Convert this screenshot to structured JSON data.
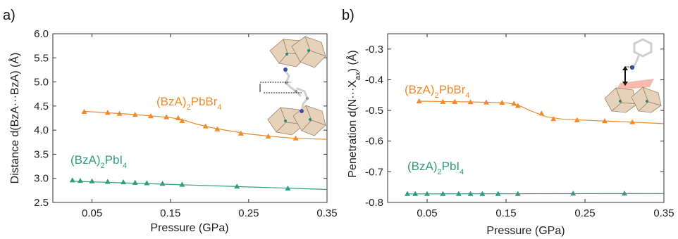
{
  "chart_data": [
    {
      "type": "line",
      "panel_label": "a)",
      "xlabel": "Pressure (GPa)",
      "ylabel": "Distance d(BzA···BzA) (Å)",
      "xlim": [
        0.0,
        0.35
      ],
      "ylim": [
        2.5,
        6.0
      ],
      "xticks": [
        "0.05",
        "0.15",
        "0.25",
        "0.35"
      ],
      "xtick_values": [
        0.05,
        0.15,
        0.25,
        0.35
      ],
      "yticks": [
        "2.5",
        "3.0",
        "3.5",
        "4.0",
        "4.5",
        "5.0",
        "5.5",
        "6.0"
      ],
      "ytick_values": [
        2.5,
        3.0,
        3.5,
        4.0,
        4.5,
        5.0,
        5.5,
        6.0
      ],
      "grid": false,
      "series": [
        {
          "name_base": "(BzA)",
          "name_sub": "2",
          "name_rest": "PbBr",
          "name_sub2": "4",
          "color": "#f08a2a",
          "marker": "triangle",
          "x": [
            0.04,
            0.07,
            0.085,
            0.105,
            0.125,
            0.145,
            0.16,
            0.165,
            0.195,
            0.21,
            0.24,
            0.275,
            0.31
          ],
          "y": [
            4.38,
            4.36,
            4.34,
            4.32,
            4.29,
            4.27,
            4.25,
            4.19,
            4.08,
            4.02,
            3.93,
            3.87,
            3.83
          ],
          "fit_x": [
            0.04,
            0.07,
            0.1,
            0.13,
            0.15,
            0.165,
            0.18,
            0.2,
            0.22,
            0.25,
            0.28,
            0.31,
            0.35
          ],
          "fit_y": [
            4.39,
            4.36,
            4.33,
            4.29,
            4.26,
            4.22,
            4.14,
            4.06,
            4.0,
            3.92,
            3.87,
            3.83,
            3.81
          ]
        },
        {
          "name_base": "(BzA)",
          "name_sub": "2",
          "name_rest": "PbI",
          "name_sub2": "4",
          "color": "#2f9e7e",
          "marker": "triangle",
          "x": [
            0.025,
            0.035,
            0.05,
            0.07,
            0.09,
            0.105,
            0.12,
            0.14,
            0.165,
            0.235,
            0.3
          ],
          "y": [
            2.96,
            2.95,
            2.94,
            2.93,
            2.92,
            2.91,
            2.9,
            2.89,
            2.87,
            2.83,
            2.79
          ],
          "fit_x": [
            0.025,
            0.35
          ],
          "fit_y": [
            2.94,
            2.77
          ]
        }
      ]
    },
    {
      "type": "line",
      "panel_label": "b)",
      "xlabel": "Pressure (GPa)",
      "ylabel_base": "Penetration d(N···X",
      "ylabel_sub": "ax",
      "ylabel_end": ") (Å)",
      "xlim": [
        0.0,
        0.35
      ],
      "ylim": [
        -0.8,
        -0.25
      ],
      "xticks": [
        "0.05",
        "0.15",
        "0.25",
        "0.35"
      ],
      "xtick_values": [
        0.05,
        0.15,
        0.25,
        0.35
      ],
      "yticks": [
        "-0.3",
        "-0.4",
        "-0.5",
        "-0.6",
        "-0.7",
        "-0.8"
      ],
      "ytick_values": [
        -0.3,
        -0.4,
        -0.5,
        -0.6,
        -0.7,
        -0.8
      ],
      "grid": false,
      "series": [
        {
          "name_base": "(BzA)",
          "name_sub": "2",
          "name_rest": "PbBr",
          "name_sub2": "4",
          "color": "#f08a2a",
          "marker": "triangle",
          "x": [
            0.04,
            0.07,
            0.085,
            0.105,
            0.125,
            0.145,
            0.16,
            0.165,
            0.195,
            0.21,
            0.24,
            0.275,
            0.31
          ],
          "y": [
            -0.47,
            -0.472,
            -0.472,
            -0.473,
            -0.474,
            -0.475,
            -0.478,
            -0.485,
            -0.51,
            -0.528,
            -0.532,
            -0.535,
            -0.538
          ],
          "fit_x": [
            0.04,
            0.1,
            0.15,
            0.165,
            0.18,
            0.2,
            0.22,
            0.26,
            0.3,
            0.35
          ],
          "fit_y": [
            -0.47,
            -0.472,
            -0.475,
            -0.482,
            -0.5,
            -0.52,
            -0.528,
            -0.533,
            -0.537,
            -0.543
          ]
        },
        {
          "name_base": "(BzA)",
          "name_sub": "2",
          "name_rest": "PbI",
          "name_sub2": "4",
          "color": "#2f9e7e",
          "marker": "triangle",
          "x": [
            0.025,
            0.035,
            0.05,
            0.07,
            0.09,
            0.105,
            0.12,
            0.14,
            0.165,
            0.235,
            0.3
          ],
          "y": [
            -0.772,
            -0.772,
            -0.772,
            -0.772,
            -0.772,
            -0.772,
            -0.772,
            -0.772,
            -0.772,
            -0.771,
            -0.771
          ],
          "fit_x": [
            0.025,
            0.35
          ],
          "fit_y": [
            -0.772,
            -0.771
          ]
        }
      ]
    }
  ]
}
